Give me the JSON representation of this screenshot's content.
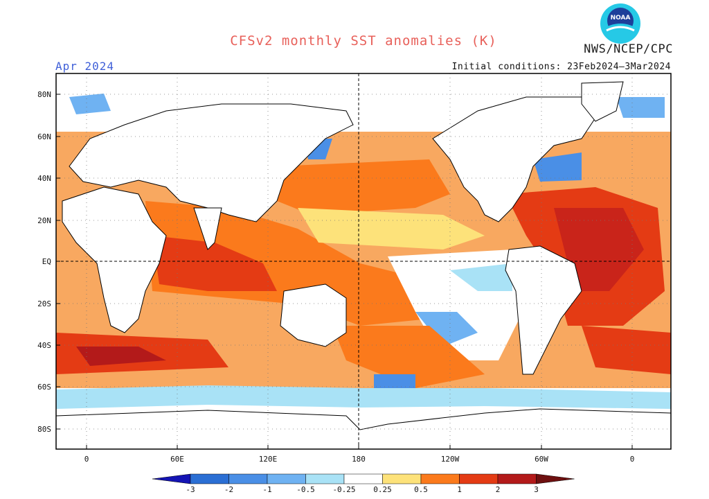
{
  "header": {
    "title": "CFSv2 monthly SST anomalies (K)",
    "agency": "NWS/NCEP/CPC",
    "month": "Apr 2024",
    "initial_conditions": "Initial conditions: 23Feb2024–3Mar2024",
    "logo_text": "NOAA"
  },
  "axes": {
    "lat_labels": [
      "80N",
      "60N",
      "40N",
      "20N",
      "EQ",
      "20S",
      "40S",
      "60S",
      "80S"
    ],
    "lon_labels": [
      "0",
      "60E",
      "120E",
      "180",
      "120W",
      "60W",
      "0"
    ]
  },
  "colorbar": {
    "labels": [
      "-3",
      "-2",
      "-1",
      "-0.5",
      "-0.25",
      "0.25",
      "0.5",
      "1",
      "2",
      "3"
    ],
    "colors": [
      "#1414b4",
      "#2b6fd4",
      "#4a8fe6",
      "#6fb2f2",
      "#a9e2f6",
      "#ffffff",
      "#fde27a",
      "#fb7a1c",
      "#e43b14",
      "#b31a1a",
      "#6e1010",
      "#8a6050"
    ]
  }
}
